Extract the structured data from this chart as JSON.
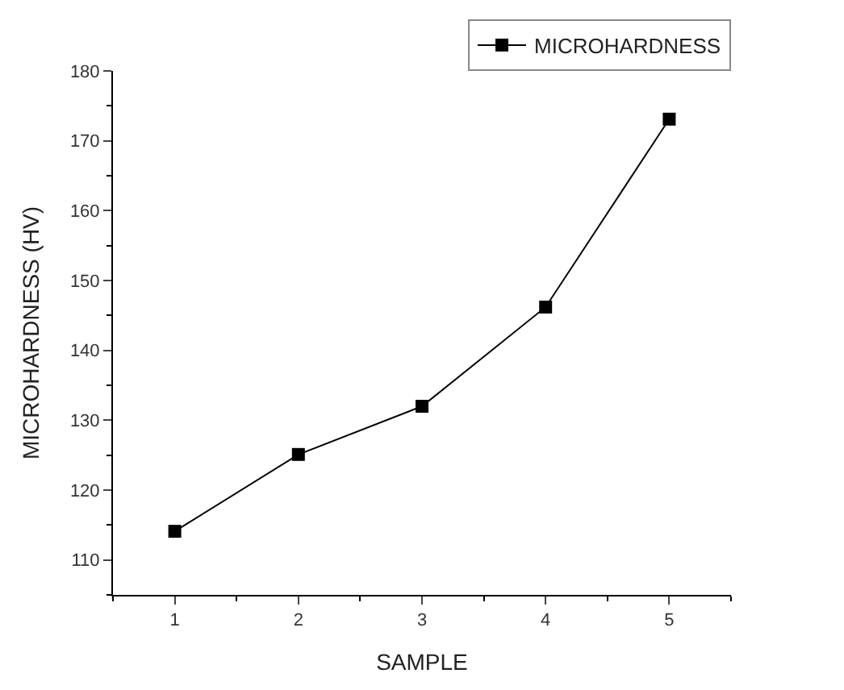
{
  "chart_data": {
    "type": "line",
    "xlabel": "SAMPLE",
    "ylabel": "MICROHARDNESS (HV)",
    "x": [
      1,
      2,
      3,
      4,
      5
    ],
    "series": [
      {
        "name": "MICROHARDNESS",
        "color": "#000000",
        "values": [
          114.1,
          125.1,
          132.0,
          146.2,
          173.1
        ]
      }
    ],
    "xlim": [
      0.5,
      5.5
    ],
    "xticks": [
      1,
      2,
      3,
      4,
      5
    ],
    "ylim": [
      105,
      180
    ],
    "yticks": [
      110,
      120,
      130,
      140,
      150,
      160,
      170,
      180
    ],
    "marker": "square",
    "line_style": "solid",
    "legend": "top right"
  }
}
